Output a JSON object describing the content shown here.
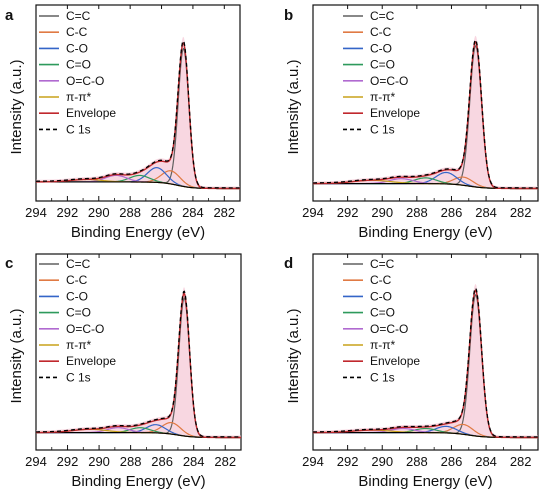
{
  "colors": {
    "C=C": "#606060",
    "C-C": "#e07a44",
    "C-O": "#3465c8",
    "C=O": "#2e9a5c",
    "O=C-O": "#b06ad0",
    "pi-pi": "#c8a21a",
    "Envelope": "#c0282d",
    "C 1s": "#000000",
    "baseline": "#000000",
    "residual_fill": "#f6c9d7"
  },
  "chart_data": [
    {
      "panel": "a",
      "type": "line",
      "xlabel": "Binding Energy (eV)",
      "ylabel": "Intensity (a.u.)",
      "xlim": [
        294,
        281
      ],
      "x_reversed": true,
      "x_ticks": [
        294,
        292,
        290,
        288,
        286,
        284,
        282
      ],
      "y_ticks_shown": false,
      "legend": [
        "C=C",
        "C-C",
        "C-O",
        "C=O",
        "O=C-O",
        "π-π*",
        "Envelope",
        "C 1s"
      ],
      "legend_position": "top-left",
      "background_shape": "shirley",
      "components": [
        {
          "name": "C=C",
          "center": 284.6,
          "fwhm": 0.8,
          "height": 0.84
        },
        {
          "name": "C-C",
          "center": 285.4,
          "fwhm": 1.4,
          "height": 0.08
        },
        {
          "name": "C-O",
          "center": 286.3,
          "fwhm": 1.4,
          "height": 0.09
        },
        {
          "name": "C=O",
          "center": 287.4,
          "fwhm": 1.5,
          "height": 0.04
        },
        {
          "name": "O=C-O",
          "center": 288.9,
          "fwhm": 1.6,
          "height": 0.04
        },
        {
          "name": "π-π*",
          "center": 290.8,
          "fwhm": 2.4,
          "height": 0.015
        }
      ],
      "background_level": 0.04
    },
    {
      "panel": "b",
      "type": "line",
      "xlabel": "Binding Energy (eV)",
      "ylabel": "Intensity (a.u.)",
      "xlim": [
        294,
        281
      ],
      "x_reversed": true,
      "x_ticks": [
        294,
        292,
        290,
        288,
        286,
        284,
        282
      ],
      "y_ticks_shown": false,
      "legend": [
        "C=C",
        "C-C",
        "C-O",
        "C=O",
        "O=C-O",
        "π-π*",
        "Envelope",
        "C 1s"
      ],
      "legend_position": "top-right",
      "background_shape": "shirley",
      "components": [
        {
          "name": "C=C",
          "center": 284.6,
          "fwhm": 0.8,
          "height": 0.86
        },
        {
          "name": "C-C",
          "center": 285.3,
          "fwhm": 1.3,
          "height": 0.05
        },
        {
          "name": "C-O",
          "center": 286.3,
          "fwhm": 1.4,
          "height": 0.07
        },
        {
          "name": "C=O",
          "center": 287.5,
          "fwhm": 1.5,
          "height": 0.035
        },
        {
          "name": "O=C-O",
          "center": 288.9,
          "fwhm": 1.6,
          "height": 0.03
        },
        {
          "name": "π-π*",
          "center": 290.6,
          "fwhm": 2.6,
          "height": 0.02
        }
      ],
      "background_level": 0.03
    },
    {
      "panel": "c",
      "type": "line",
      "xlabel": "Binding Energy (eV)",
      "ylabel": "Intensity (a.u.)",
      "xlim": [
        294,
        281
      ],
      "x_reversed": true,
      "x_ticks": [
        294,
        292,
        290,
        288,
        286,
        284,
        282
      ],
      "y_ticks_shown": false,
      "legend": [
        "C=C",
        "C-C",
        "C-O",
        "C=O",
        "O=C-O",
        "π-π*",
        "Envelope",
        "C 1s"
      ],
      "legend_position": "top-left",
      "background_shape": "shirley",
      "components": [
        {
          "name": "C=C",
          "center": 284.6,
          "fwhm": 0.8,
          "height": 0.84
        },
        {
          "name": "C-C",
          "center": 285.4,
          "fwhm": 1.4,
          "height": 0.07
        },
        {
          "name": "C-O",
          "center": 286.4,
          "fwhm": 1.4,
          "height": 0.05
        },
        {
          "name": "C=O",
          "center": 287.4,
          "fwhm": 1.5,
          "height": 0.03
        },
        {
          "name": "O=C-O",
          "center": 288.8,
          "fwhm": 1.6,
          "height": 0.03
        },
        {
          "name": "π-π*",
          "center": 290.6,
          "fwhm": 2.6,
          "height": 0.02
        }
      ],
      "background_level": 0.03
    },
    {
      "panel": "d",
      "type": "line",
      "xlabel": "Binding Energy (eV)",
      "ylabel": "Intensity (a.u.)",
      "xlim": [
        294,
        281
      ],
      "x_reversed": true,
      "x_ticks": [
        294,
        292,
        290,
        288,
        286,
        284,
        282
      ],
      "y_ticks_shown": false,
      "legend": [
        "C=C",
        "C-C",
        "C-O",
        "C=O",
        "O=C-O",
        "π-π*",
        "Envelope",
        "C 1s"
      ],
      "legend_position": "top-right",
      "background_shape": "shirley",
      "components": [
        {
          "name": "C=C",
          "center": 284.6,
          "fwhm": 0.8,
          "height": 0.86
        },
        {
          "name": "C-C",
          "center": 285.3,
          "fwhm": 1.3,
          "height": 0.06
        },
        {
          "name": "C-O",
          "center": 286.3,
          "fwhm": 1.4,
          "height": 0.04
        },
        {
          "name": "C=O",
          "center": 287.5,
          "fwhm": 1.5,
          "height": 0.025
        },
        {
          "name": "O=C-O",
          "center": 288.8,
          "fwhm": 1.6,
          "height": 0.025
        },
        {
          "name": "π-π*",
          "center": 290.6,
          "fwhm": 2.6,
          "height": 0.015
        }
      ],
      "background_level": 0.03
    }
  ]
}
